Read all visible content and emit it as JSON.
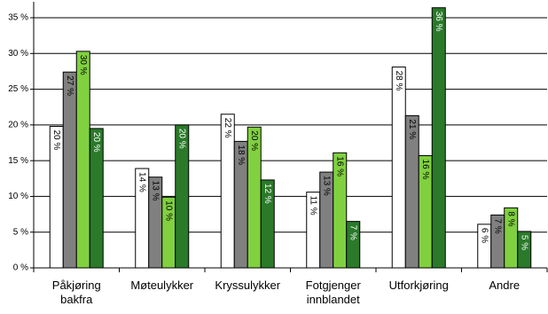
{
  "chart_data": {
    "type": "bar",
    "categories": [
      "Påkjøring bakfra",
      "Møteulykker",
      "Kryssulykker",
      "Fotgjenger innblandet",
      "Utforkjøring",
      "Andre"
    ],
    "series": [
      {
        "color": "#ffffff",
        "values": [
          19.8,
          13.9,
          21.5,
          10.6,
          28.1,
          6.1
        ],
        "value_labels": [
          "20 %",
          "14 %",
          "22 %",
          "11 %",
          "28 %",
          "6 %"
        ]
      },
      {
        "color": "#808080",
        "values": [
          27.4,
          12.7,
          17.7,
          13.4,
          21.3,
          7.4
        ],
        "value_labels": [
          "27 %",
          "13 %",
          "18 %",
          "13 %",
          "21 %",
          "7 %"
        ]
      },
      {
        "color": "#80d040",
        "values": [
          30.3,
          9.9,
          19.7,
          16.1,
          15.7,
          8.4
        ],
        "value_labels": [
          "30 %",
          "10 %",
          "20 %",
          "16 %",
          "16 %",
          "8 %"
        ]
      },
      {
        "color": "#2a7a2a",
        "values": [
          19.5,
          20.0,
          12.3,
          6.5,
          36.4,
          5.1
        ],
        "value_labels": [
          "20 %",
          "20 %",
          "12 %",
          "7 %",
          "36 %",
          "5 %"
        ]
      }
    ],
    "ylim": [
      0,
      35
    ],
    "yticks": [
      {
        "value": 0,
        "label": "0 %"
      },
      {
        "value": 5,
        "label": "5 %"
      },
      {
        "value": 10,
        "label": "10 %"
      },
      {
        "value": 15,
        "label": "15 %"
      },
      {
        "value": 20,
        "label": "20 %"
      },
      {
        "value": 25,
        "label": "25 %"
      },
      {
        "value": 30,
        "label": "30 %"
      },
      {
        "value": 35,
        "label": "35 %"
      }
    ],
    "grid": true
  }
}
